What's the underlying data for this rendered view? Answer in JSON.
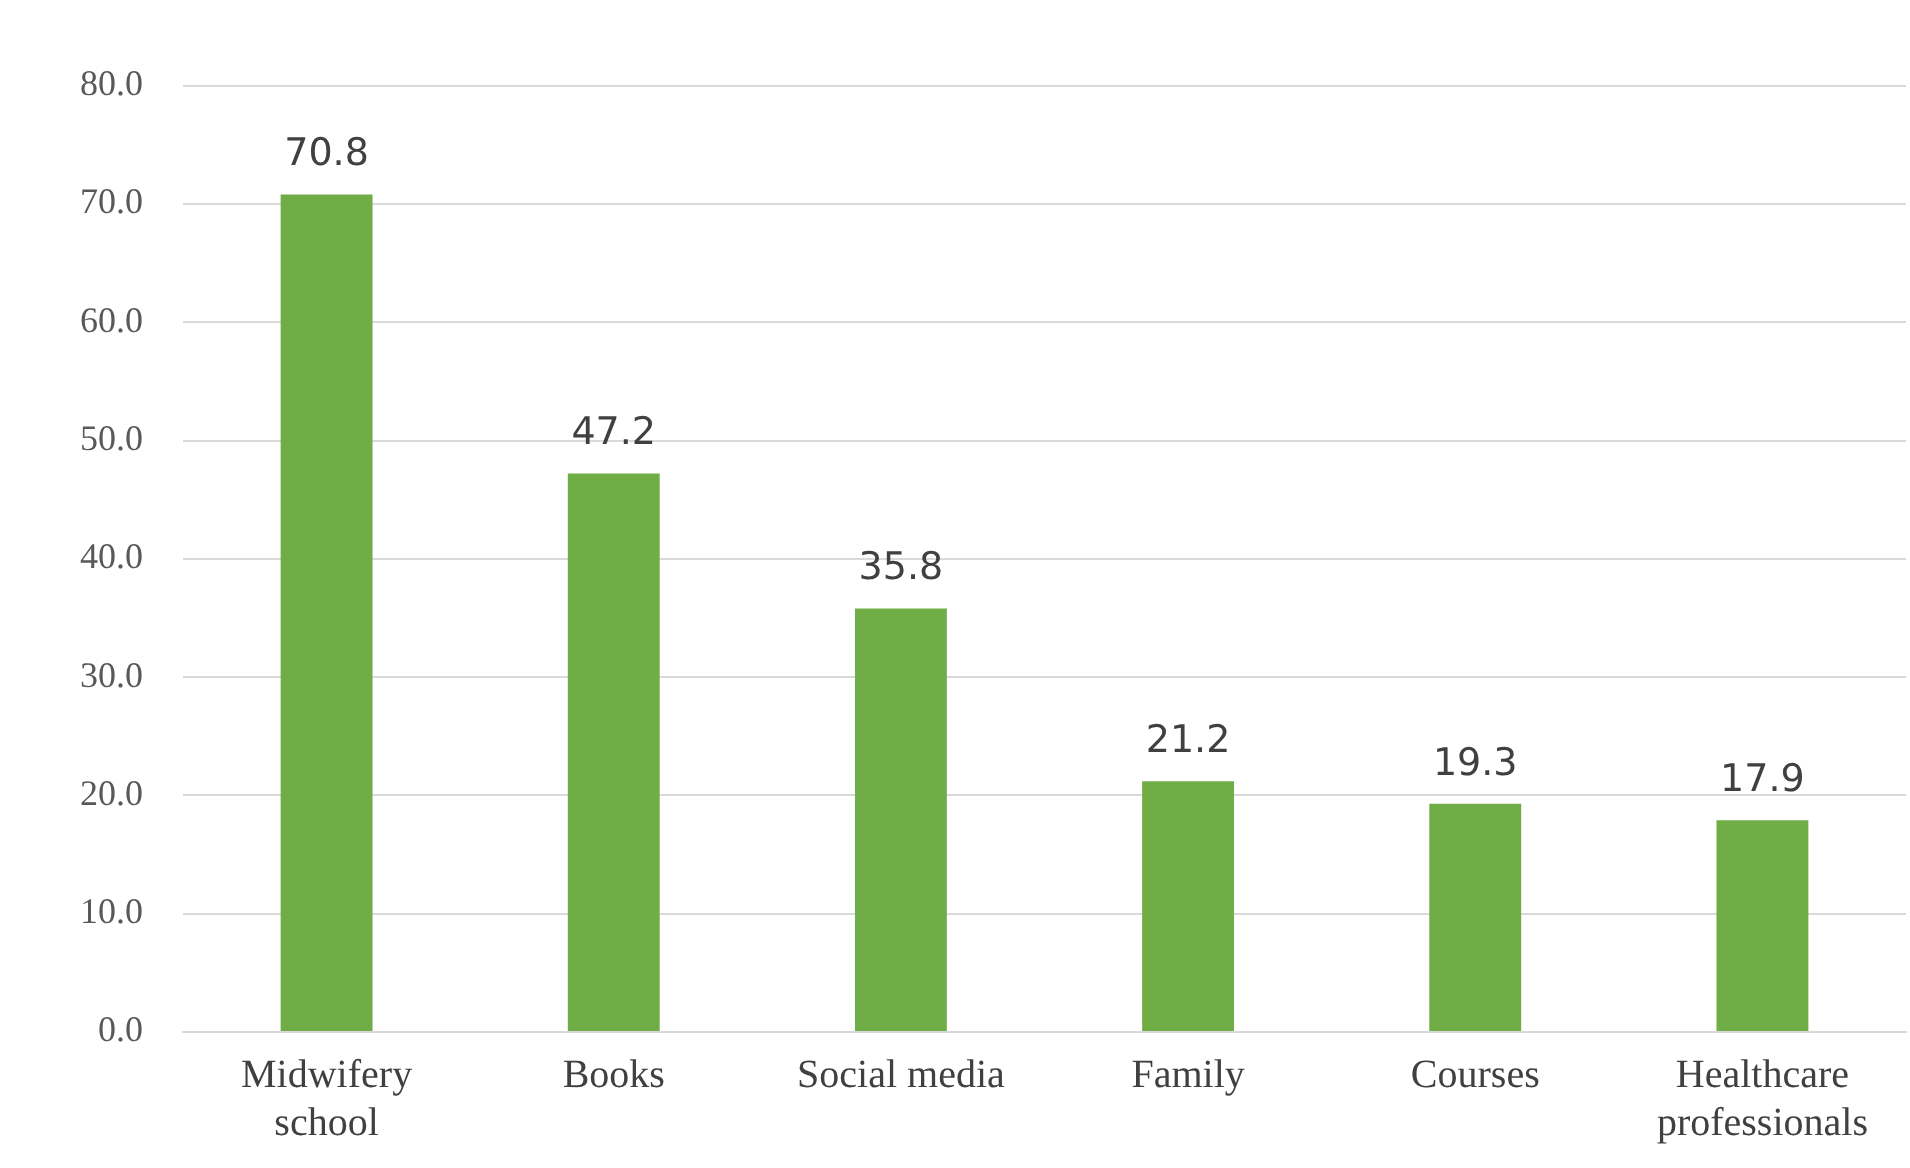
{
  "chart_data": {
    "type": "bar",
    "categories": [
      "Midwifery school",
      "Books",
      "Social media",
      "Family",
      "Courses",
      "Healthcare professionals"
    ],
    "values": [
      70.8,
      47.2,
      35.8,
      21.2,
      19.3,
      17.9
    ],
    "color": "#70ad47",
    "ylim": [
      0,
      80
    ],
    "yticks": [
      {
        "value": 0,
        "label": "0.0"
      },
      {
        "value": 10,
        "label": "10.0"
      },
      {
        "value": 20,
        "label": "20.0"
      },
      {
        "value": 30,
        "label": "30.0"
      },
      {
        "value": 40,
        "label": "40.0"
      },
      {
        "value": 50,
        "label": "50.0"
      },
      {
        "value": 60,
        "label": "60.0"
      },
      {
        "value": 70,
        "label": "70.0"
      },
      {
        "value": 80,
        "label": "80.0"
      }
    ],
    "grid": "y",
    "data_labels": true
  }
}
